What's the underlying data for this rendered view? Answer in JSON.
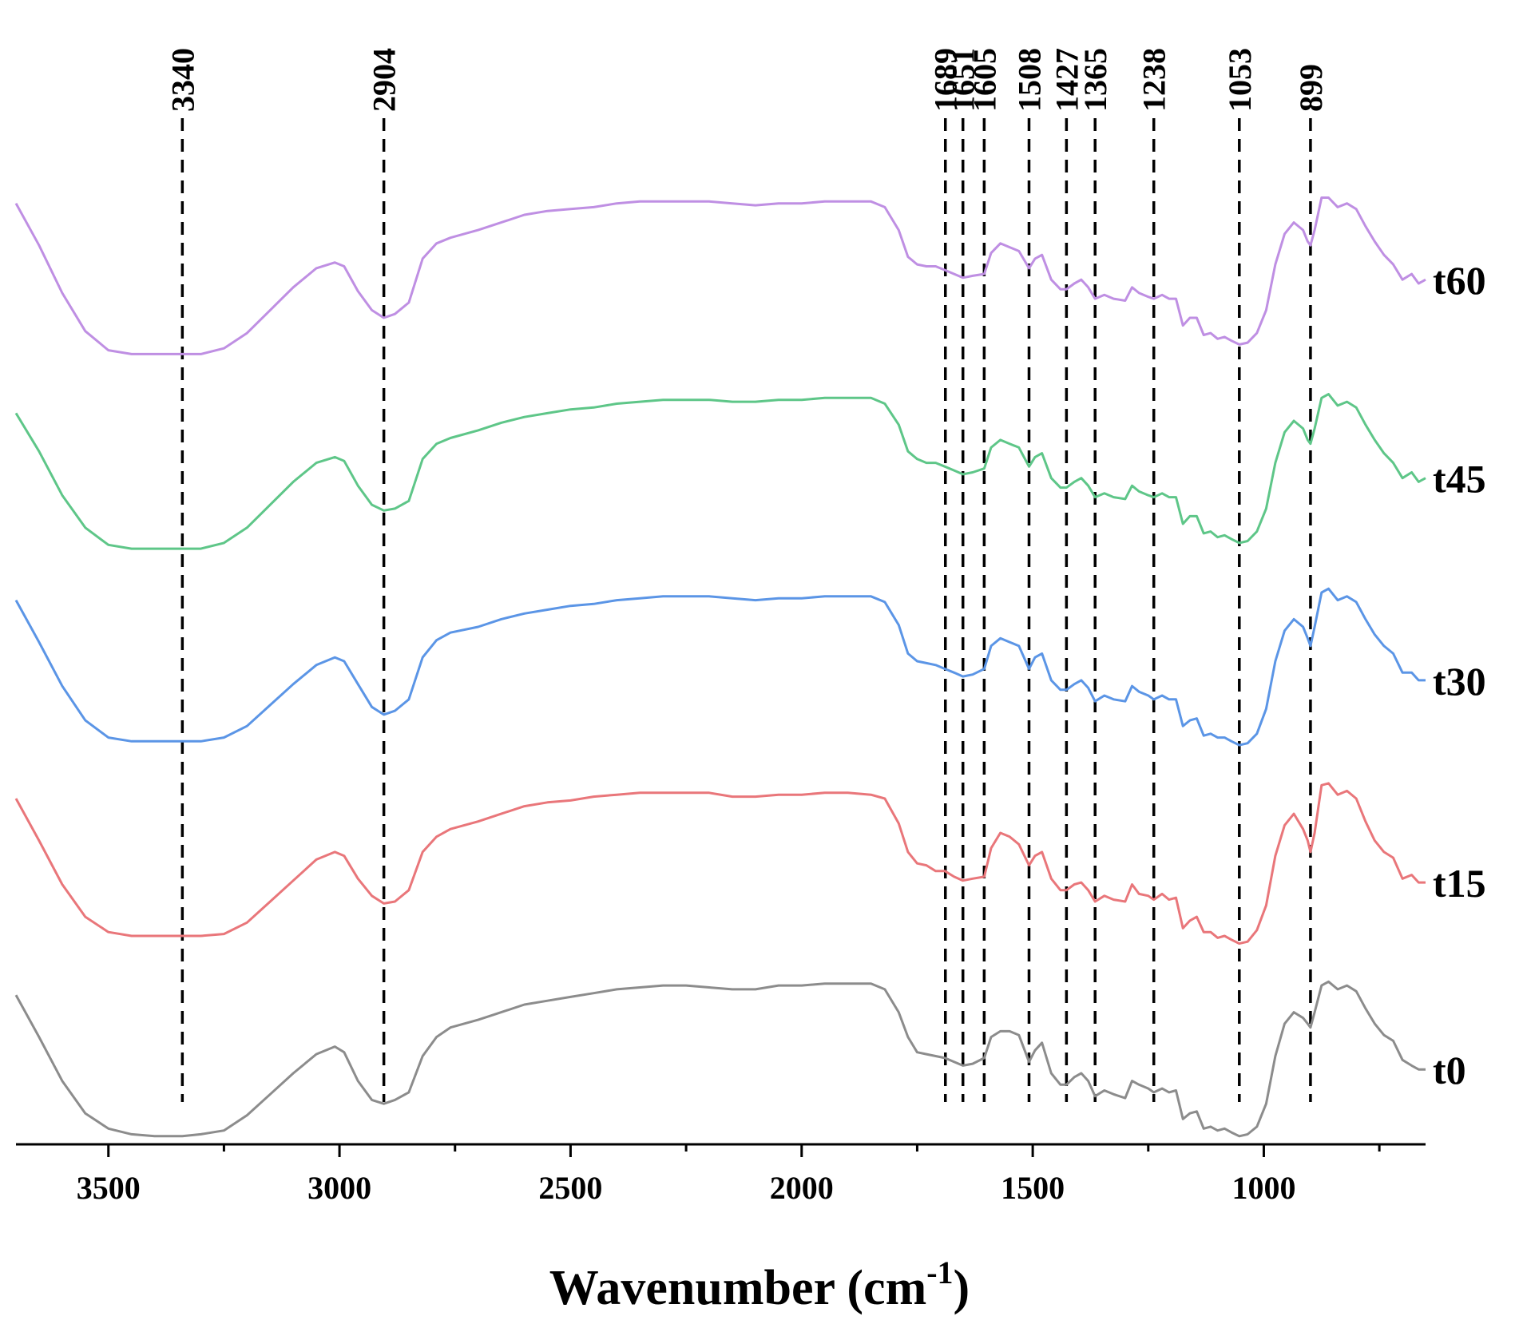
{
  "chart_data": {
    "type": "line",
    "title": "",
    "xlabel": "Wavenumber (cm",
    "xlabel_sup": "-1",
    "xlabel_end": ")",
    "ylabel": "",
    "xlim": [
      3700,
      650
    ],
    "x_reversed": true,
    "ylim": [
      0,
      5.4
    ],
    "x_ticks": [
      {
        "value": 3500,
        "label": "3500"
      },
      {
        "value": 3000,
        "label": "3000"
      },
      {
        "value": 2500,
        "label": "2500"
      },
      {
        "value": 2000,
        "label": "2000"
      },
      {
        "value": 1500,
        "label": "1500"
      },
      {
        "value": 1000,
        "label": "1000"
      }
    ],
    "x_minor_ticks": [
      3250,
      2750,
      2250,
      1750,
      1250,
      750
    ],
    "peak_lines": [
      {
        "value": 3340,
        "label": "3340"
      },
      {
        "value": 2904,
        "label": "2904"
      },
      {
        "value": 1689,
        "label": "1689"
      },
      {
        "value": 1651,
        "label": "1651"
      },
      {
        "value": 1605,
        "label": "1605"
      },
      {
        "value": 1508,
        "label": "1508"
      },
      {
        "value": 1427,
        "label": "1427"
      },
      {
        "value": 1365,
        "label": "1365"
      },
      {
        "value": 1238,
        "label": "1238"
      },
      {
        "value": 1053,
        "label": "1053"
      },
      {
        "value": 899,
        "label": "899"
      }
    ],
    "profile_x": [
      3700,
      3650,
      3600,
      3550,
      3500,
      3450,
      3400,
      3370,
      3340,
      3300,
      3250,
      3200,
      3150,
      3100,
      3050,
      3010,
      2990,
      2960,
      2930,
      2904,
      2880,
      2850,
      2820,
      2790,
      2760,
      2700,
      2650,
      2600,
      2550,
      2500,
      2450,
      2400,
      2350,
      2300,
      2250,
      2200,
      2150,
      2100,
      2050,
      2000,
      1950,
      1900,
      1850,
      1820,
      1790,
      1770,
      1750,
      1730,
      1710,
      1690,
      1670,
      1651,
      1630,
      1605,
      1590,
      1570,
      1550,
      1530,
      1508,
      1495,
      1480,
      1460,
      1440,
      1427,
      1410,
      1395,
      1380,
      1365,
      1345,
      1325,
      1300,
      1285,
      1270,
      1250,
      1238,
      1220,
      1205,
      1190,
      1175,
      1160,
      1145,
      1130,
      1115,
      1100,
      1085,
      1070,
      1053,
      1035,
      1015,
      995,
      975,
      955,
      935,
      915,
      905,
      899,
      890,
      875,
      860,
      840,
      820,
      800,
      780,
      760,
      740,
      720,
      700,
      680,
      665,
      650
    ],
    "series": [
      {
        "name": "t0",
        "label": "t0",
        "color": "#8c8c8c",
        "offset": 0.0,
        "y": [
          0.77,
          0.55,
          0.32,
          0.15,
          0.07,
          0.04,
          0.03,
          0.03,
          0.03,
          0.04,
          0.06,
          0.14,
          0.25,
          0.36,
          0.46,
          0.5,
          0.47,
          0.32,
          0.22,
          0.2,
          0.22,
          0.26,
          0.45,
          0.55,
          0.6,
          0.64,
          0.68,
          0.72,
          0.74,
          0.76,
          0.78,
          0.8,
          0.81,
          0.82,
          0.82,
          0.81,
          0.8,
          0.8,
          0.82,
          0.82,
          0.83,
          0.83,
          0.83,
          0.8,
          0.68,
          0.55,
          0.47,
          0.46,
          0.45,
          0.44,
          0.42,
          0.4,
          0.41,
          0.44,
          0.55,
          0.58,
          0.58,
          0.56,
          0.42,
          0.48,
          0.52,
          0.36,
          0.3,
          0.3,
          0.34,
          0.36,
          0.32,
          0.24,
          0.27,
          0.25,
          0.23,
          0.32,
          0.3,
          0.28,
          0.26,
          0.28,
          0.26,
          0.27,
          0.12,
          0.15,
          0.16,
          0.07,
          0.08,
          0.06,
          0.07,
          0.05,
          0.03,
          0.04,
          0.08,
          0.2,
          0.45,
          0.62,
          0.68,
          0.65,
          0.62,
          0.6,
          0.68,
          0.82,
          0.84,
          0.8,
          0.82,
          0.79,
          0.7,
          0.62,
          0.56,
          0.53,
          0.43,
          0.4,
          0.38,
          0.38
        ]
      },
      {
        "name": "t15",
        "label": "t15",
        "color": "#e9767a",
        "offset": 1.02,
        "y": [
          0.78,
          0.56,
          0.33,
          0.16,
          0.08,
          0.06,
          0.06,
          0.06,
          0.06,
          0.06,
          0.07,
          0.13,
          0.24,
          0.35,
          0.46,
          0.5,
          0.48,
          0.36,
          0.27,
          0.23,
          0.24,
          0.3,
          0.5,
          0.58,
          0.62,
          0.66,
          0.7,
          0.74,
          0.76,
          0.77,
          0.79,
          0.8,
          0.81,
          0.81,
          0.81,
          0.81,
          0.79,
          0.79,
          0.8,
          0.8,
          0.81,
          0.81,
          0.8,
          0.78,
          0.65,
          0.5,
          0.44,
          0.43,
          0.4,
          0.4,
          0.37,
          0.35,
          0.36,
          0.37,
          0.52,
          0.6,
          0.58,
          0.54,
          0.43,
          0.48,
          0.5,
          0.36,
          0.3,
          0.3,
          0.33,
          0.34,
          0.3,
          0.24,
          0.27,
          0.25,
          0.24,
          0.33,
          0.28,
          0.27,
          0.25,
          0.28,
          0.25,
          0.26,
          0.1,
          0.14,
          0.16,
          0.08,
          0.08,
          0.05,
          0.06,
          0.04,
          0.02,
          0.03,
          0.09,
          0.22,
          0.48,
          0.64,
          0.7,
          0.62,
          0.56,
          0.5,
          0.6,
          0.85,
          0.86,
          0.8,
          0.82,
          0.78,
          0.66,
          0.56,
          0.5,
          0.47,
          0.36,
          0.38,
          0.34,
          0.34
        ]
      },
      {
        "name": "t30",
        "label": "t30",
        "color": "#5b95e6",
        "offset": 2.04,
        "y": [
          0.8,
          0.58,
          0.35,
          0.17,
          0.08,
          0.06,
          0.06,
          0.06,
          0.06,
          0.06,
          0.08,
          0.14,
          0.25,
          0.36,
          0.46,
          0.5,
          0.48,
          0.36,
          0.24,
          0.2,
          0.22,
          0.28,
          0.5,
          0.59,
          0.63,
          0.66,
          0.7,
          0.73,
          0.75,
          0.77,
          0.78,
          0.8,
          0.81,
          0.82,
          0.82,
          0.82,
          0.81,
          0.8,
          0.81,
          0.81,
          0.82,
          0.82,
          0.82,
          0.79,
          0.67,
          0.52,
          0.48,
          0.47,
          0.46,
          0.44,
          0.42,
          0.4,
          0.41,
          0.44,
          0.56,
          0.6,
          0.58,
          0.56,
          0.44,
          0.5,
          0.52,
          0.38,
          0.33,
          0.33,
          0.36,
          0.38,
          0.34,
          0.27,
          0.3,
          0.28,
          0.27,
          0.35,
          0.32,
          0.3,
          0.28,
          0.3,
          0.28,
          0.28,
          0.14,
          0.17,
          0.18,
          0.09,
          0.1,
          0.08,
          0.08,
          0.06,
          0.04,
          0.05,
          0.1,
          0.23,
          0.48,
          0.64,
          0.7,
          0.66,
          0.6,
          0.56,
          0.66,
          0.84,
          0.86,
          0.8,
          0.82,
          0.79,
          0.7,
          0.62,
          0.56,
          0.52,
          0.42,
          0.42,
          0.38,
          0.38
        ]
      },
      {
        "name": "t45",
        "label": "t45",
        "color": "#5ec688",
        "offset": 3.06,
        "y": [
          0.76,
          0.56,
          0.33,
          0.16,
          0.07,
          0.05,
          0.05,
          0.05,
          0.05,
          0.05,
          0.08,
          0.16,
          0.28,
          0.4,
          0.5,
          0.53,
          0.51,
          0.38,
          0.28,
          0.25,
          0.26,
          0.3,
          0.52,
          0.6,
          0.63,
          0.67,
          0.71,
          0.74,
          0.76,
          0.78,
          0.79,
          0.81,
          0.82,
          0.83,
          0.83,
          0.83,
          0.82,
          0.82,
          0.83,
          0.83,
          0.84,
          0.84,
          0.84,
          0.81,
          0.7,
          0.56,
          0.52,
          0.5,
          0.5,
          0.48,
          0.46,
          0.44,
          0.45,
          0.47,
          0.58,
          0.62,
          0.6,
          0.58,
          0.48,
          0.53,
          0.55,
          0.42,
          0.37,
          0.37,
          0.4,
          0.42,
          0.38,
          0.32,
          0.34,
          0.32,
          0.31,
          0.38,
          0.35,
          0.33,
          0.32,
          0.34,
          0.32,
          0.32,
          0.18,
          0.22,
          0.22,
          0.13,
          0.14,
          0.11,
          0.12,
          0.1,
          0.08,
          0.09,
          0.14,
          0.26,
          0.5,
          0.66,
          0.72,
          0.68,
          0.62,
          0.6,
          0.68,
          0.84,
          0.86,
          0.8,
          0.82,
          0.79,
          0.7,
          0.62,
          0.55,
          0.5,
          0.42,
          0.45,
          0.4,
          0.42
        ]
      },
      {
        "name": "t60",
        "label": "t60",
        "color": "#bf8fe3",
        "offset": 4.08,
        "y": [
          0.84,
          0.62,
          0.37,
          0.17,
          0.07,
          0.05,
          0.05,
          0.05,
          0.05,
          0.05,
          0.08,
          0.16,
          0.28,
          0.4,
          0.5,
          0.53,
          0.51,
          0.38,
          0.28,
          0.24,
          0.26,
          0.32,
          0.55,
          0.63,
          0.66,
          0.7,
          0.74,
          0.78,
          0.8,
          0.81,
          0.82,
          0.84,
          0.85,
          0.85,
          0.85,
          0.85,
          0.84,
          0.83,
          0.84,
          0.84,
          0.85,
          0.85,
          0.85,
          0.82,
          0.7,
          0.56,
          0.52,
          0.51,
          0.51,
          0.49,
          0.47,
          0.45,
          0.46,
          0.47,
          0.58,
          0.63,
          0.61,
          0.59,
          0.5,
          0.55,
          0.57,
          0.44,
          0.39,
          0.39,
          0.42,
          0.44,
          0.4,
          0.34,
          0.36,
          0.34,
          0.33,
          0.4,
          0.37,
          0.35,
          0.34,
          0.36,
          0.34,
          0.34,
          0.2,
          0.24,
          0.24,
          0.15,
          0.16,
          0.13,
          0.14,
          0.12,
          0.1,
          0.11,
          0.16,
          0.28,
          0.52,
          0.68,
          0.74,
          0.7,
          0.64,
          0.62,
          0.7,
          0.87,
          0.87,
          0.82,
          0.84,
          0.81,
          0.72,
          0.64,
          0.57,
          0.52,
          0.44,
          0.47,
          0.42,
          0.44
        ]
      }
    ]
  }
}
